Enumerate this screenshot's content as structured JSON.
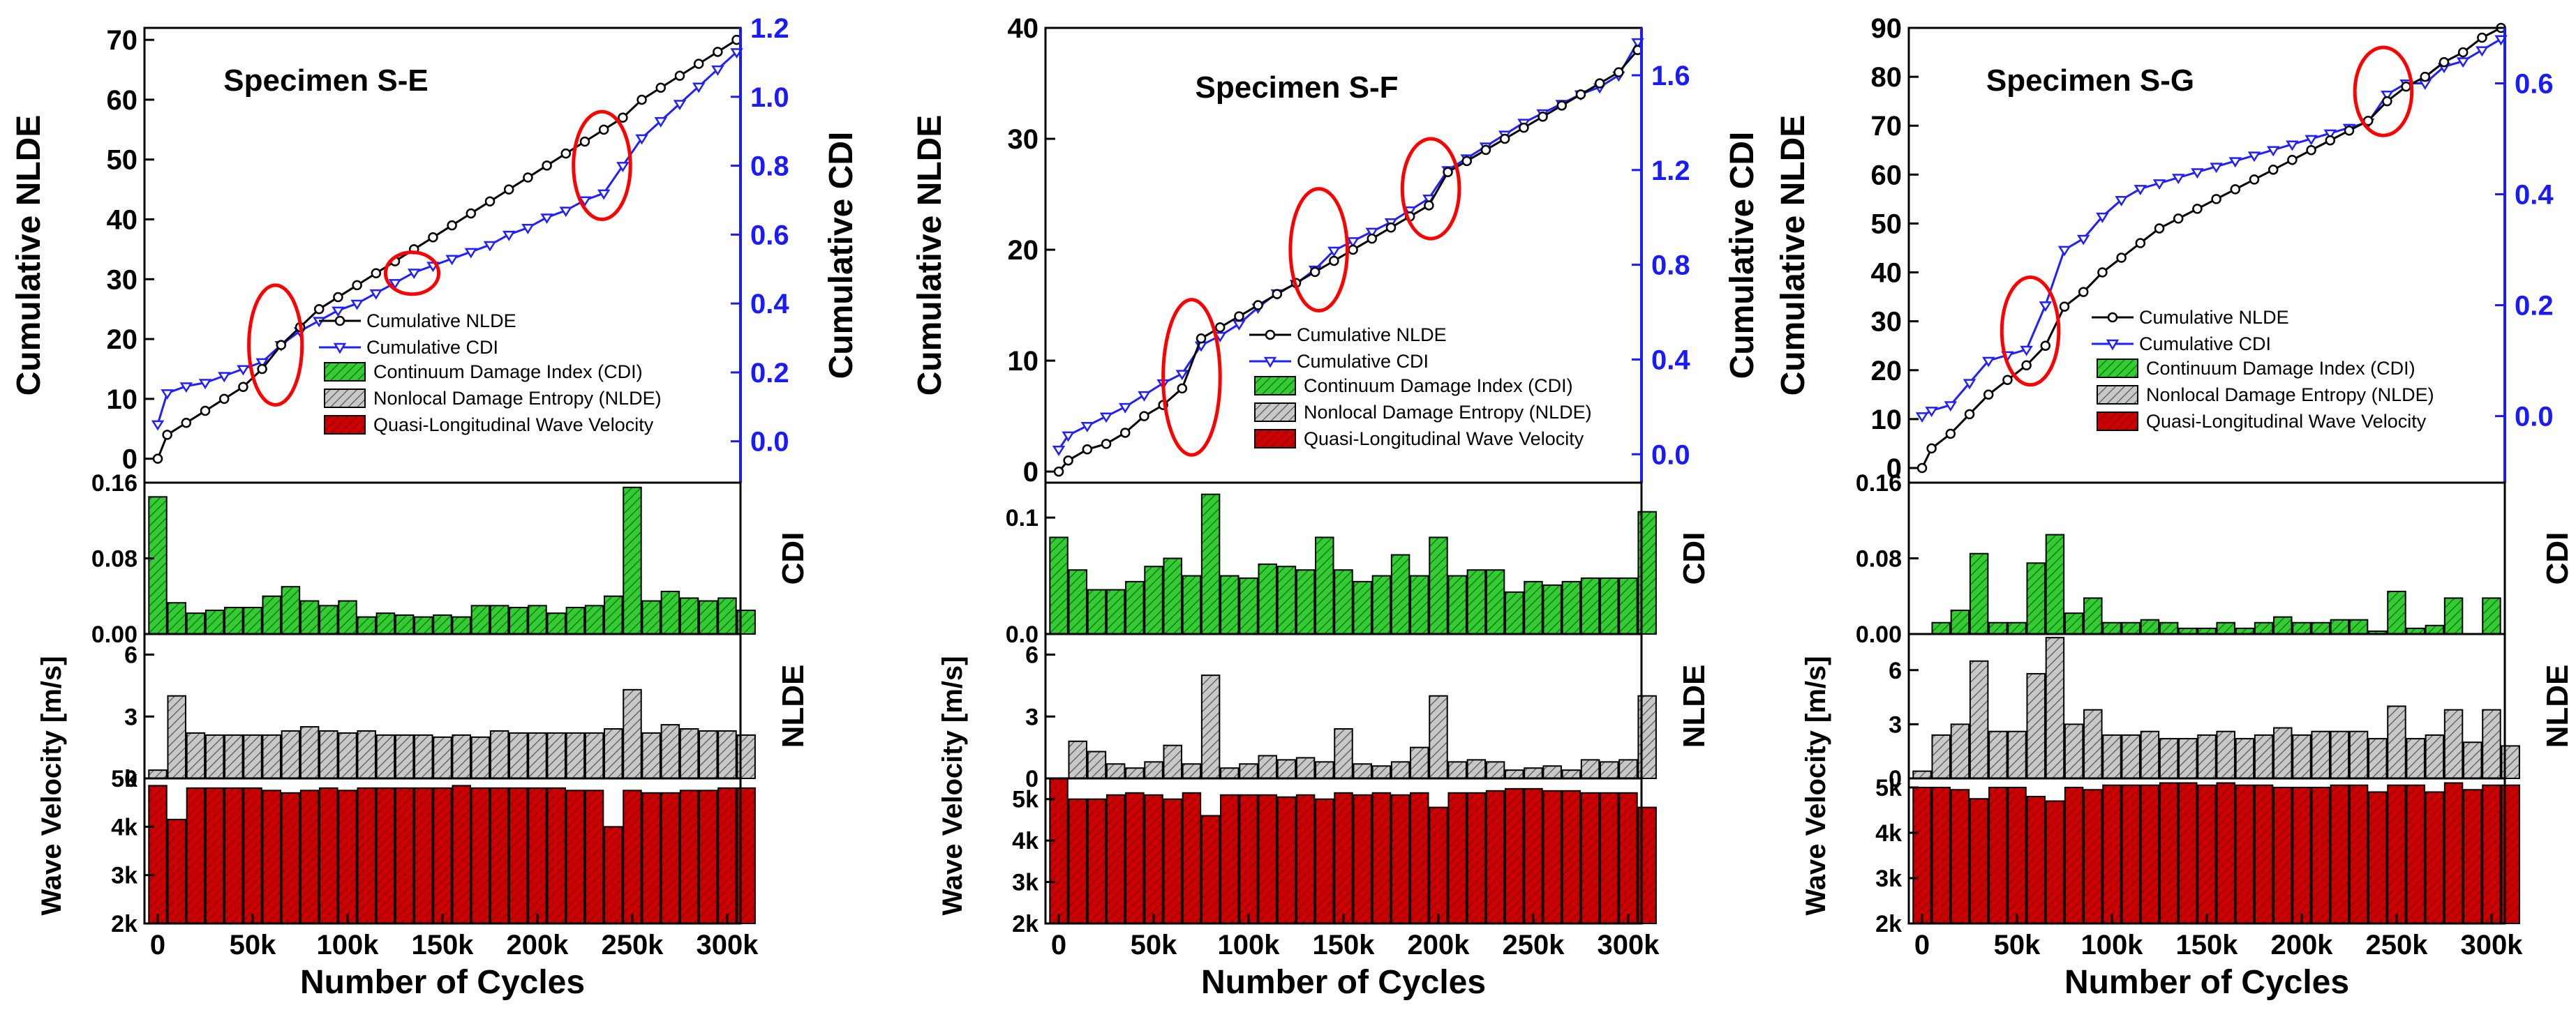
{
  "colors": {
    "cdi_bar": "#33cc33",
    "nlde_bar": "#bfbfbf",
    "wave_bar": "#cc0000",
    "cdi_line": "#1f1fff",
    "nlde_line": "#000000",
    "circle": "#ff0000",
    "right_axis": "#1a1aff"
  },
  "common": {
    "x_axis_label": "Number of Cycles",
    "x_ticks": [
      "0",
      "50k",
      "100k",
      "150k",
      "200k",
      "250k",
      "300k"
    ],
    "cum_left_label": "Cumulative NLDE",
    "cum_right_label": "Cumulative CDI",
    "cdi_label": "CDI",
    "nlde_label": "NLDE",
    "wave_label": "Wave Velocity [m/s]",
    "wave_ticks": [
      "2k",
      "3k",
      "4k",
      "5k"
    ],
    "legend": {
      "cum_nlde": "Cumulative NLDE",
      "cum_cdi": "Cumulative CDI",
      "cdi": "Continuum Damage Index (CDI)",
      "nlde": "Nonlocal Damage Entropy (NLDE)",
      "wave": "Quasi-Longitudinal Wave Velocity"
    }
  },
  "chart_data": [
    {
      "type": "bar",
      "title": "Specimen S-E",
      "x_cycles": [
        0,
        10000,
        20000,
        30000,
        40000,
        50000,
        60000,
        70000,
        80000,
        90000,
        100000,
        110000,
        120000,
        130000,
        140000,
        150000,
        160000,
        170000,
        180000,
        190000,
        200000,
        210000,
        220000,
        230000,
        240000,
        250000,
        260000,
        270000,
        280000,
        290000,
        300000
      ],
      "xlim": [
        0,
        305000
      ],
      "cumulative": {
        "ylim_left": [
          -4,
          72
        ],
        "ylim_right": [
          -0.12,
          1.2
        ],
        "left_ticks": [
          0,
          10,
          20,
          30,
          40,
          50,
          60,
          70
        ],
        "right_ticks": [
          "0.0",
          "0.2",
          "0.4",
          "0.6",
          "0.8",
          "1.0",
          "1.2"
        ],
        "right_tick_values": [
          0,
          0.2,
          0.4,
          0.6,
          0.8,
          1.0,
          1.2
        ],
        "cum_nlde": [
          0,
          4,
          6,
          8,
          10,
          12,
          15,
          19,
          22,
          25,
          27,
          29,
          31,
          33,
          35,
          37,
          39,
          41,
          43,
          45,
          47,
          49,
          51,
          53,
          55,
          57,
          60,
          62,
          64,
          66,
          68,
          70
        ],
        "cum_cdi": [
          0.05,
          0.14,
          0.16,
          0.17,
          0.19,
          0.21,
          0.23,
          0.28,
          0.32,
          0.35,
          0.38,
          0.4,
          0.43,
          0.46,
          0.49,
          0.51,
          0.53,
          0.55,
          0.57,
          0.6,
          0.62,
          0.65,
          0.67,
          0.7,
          0.72,
          0.8,
          0.88,
          0.93,
          0.98,
          1.03,
          1.08,
          1.13
        ],
        "cum_x": [
          0,
          5000,
          15000,
          25000,
          35000,
          45000,
          55000,
          65000,
          75000,
          85000,
          95000,
          105000,
          115000,
          125000,
          135000,
          145000,
          155000,
          165000,
          175000,
          185000,
          195000,
          205000,
          215000,
          225000,
          235000,
          245000,
          255000,
          265000,
          275000,
          285000,
          295000,
          305000
        ],
        "circles": [
          {
            "cx": 62000,
            "cy": 19,
            "rx": 14000,
            "ry": 10
          },
          {
            "cx": 134000,
            "cy": 31,
            "rx": 14000,
            "ry": 3.5
          },
          {
            "cx": 234000,
            "cy": 49,
            "rx": 15000,
            "ry": 9
          }
        ]
      },
      "cdi": {
        "ylim": [
          0,
          0.16
        ],
        "ticks": [
          "0.00",
          "0.08",
          "0.16"
        ],
        "tick_values": [
          0,
          0.08,
          0.16
        ],
        "values": [
          0.145,
          0.033,
          0.022,
          0.025,
          0.028,
          0.028,
          0.04,
          0.05,
          0.035,
          0.03,
          0.035,
          0.018,
          0.022,
          0.02,
          0.018,
          0.02,
          0.018,
          0.03,
          0.03,
          0.028,
          0.03,
          0.022,
          0.028,
          0.03,
          0.04,
          0.155,
          0.035,
          0.045,
          0.038,
          0.035,
          0.038,
          0.025
        ]
      },
      "nlde": {
        "ylim": [
          0,
          7
        ],
        "ticks": [
          "0",
          "3",
          "6"
        ],
        "tick_values": [
          0,
          3,
          6
        ],
        "values": [
          0.4,
          4.0,
          2.2,
          2.1,
          2.1,
          2.1,
          2.1,
          2.3,
          2.5,
          2.3,
          2.2,
          2.3,
          2.1,
          2.1,
          2.1,
          2.0,
          2.1,
          2.0,
          2.3,
          2.2,
          2.2,
          2.2,
          2.2,
          2.2,
          2.4,
          4.3,
          2.2,
          2.6,
          2.4,
          2.3,
          2.3,
          2.1
        ]
      },
      "wave": {
        "ylim": [
          2000,
          5000
        ],
        "tick_values": [
          2000,
          3000,
          4000,
          5000
        ],
        "values": [
          4850,
          4150,
          4800,
          4800,
          4800,
          4800,
          4750,
          4700,
          4750,
          4800,
          4750,
          4800,
          4800,
          4800,
          4800,
          4800,
          4850,
          4800,
          4800,
          4800,
          4800,
          4800,
          4750,
          4750,
          4000,
          4750,
          4700,
          4700,
          4750,
          4750,
          4800,
          4800
        ]
      }
    },
    {
      "type": "bar",
      "title": "Specimen S-F",
      "xlim": [
        0,
        305000
      ],
      "cumulative": {
        "ylim_left": [
          -1,
          40
        ],
        "ylim_right": [
          -0.12,
          1.8
        ],
        "left_ticks": [
          0,
          10,
          20,
          30,
          40
        ],
        "right_ticks": [
          "0.0",
          "0.4",
          "0.8",
          "1.2",
          "1.6"
        ],
        "right_tick_values": [
          0,
          0.4,
          0.8,
          1.2,
          1.6
        ],
        "cum_nlde": [
          0,
          1,
          2,
          2.5,
          3.5,
          5,
          6,
          7.5,
          12,
          13,
          14,
          15,
          16,
          17,
          18,
          19,
          20,
          21,
          22,
          23,
          24,
          27,
          28,
          29,
          30,
          31,
          32,
          33,
          34,
          35,
          36,
          38
        ],
        "cum_cdi": [
          0.02,
          0.08,
          0.12,
          0.16,
          0.2,
          0.25,
          0.3,
          0.34,
          0.46,
          0.5,
          0.55,
          0.62,
          0.68,
          0.72,
          0.78,
          0.86,
          0.9,
          0.94,
          0.98,
          1.03,
          1.08,
          1.2,
          1.25,
          1.3,
          1.35,
          1.4,
          1.44,
          1.48,
          1.52,
          1.55,
          1.6,
          1.74
        ],
        "cum_x": [
          0,
          5000,
          15000,
          25000,
          35000,
          45000,
          55000,
          65000,
          75000,
          85000,
          95000,
          105000,
          115000,
          125000,
          135000,
          145000,
          155000,
          165000,
          175000,
          185000,
          195000,
          205000,
          215000,
          225000,
          235000,
          245000,
          255000,
          265000,
          275000,
          285000,
          295000,
          305000
        ],
        "circles": [
          {
            "cx": 70000,
            "cy": 8.5,
            "rx": 15000,
            "ry": 7
          },
          {
            "cx": 137000,
            "cy": 20,
            "rx": 15000,
            "ry": 5.5
          },
          {
            "cx": 196000,
            "cy": 25.5,
            "rx": 15000,
            "ry": 4.5
          }
        ]
      },
      "cdi": {
        "ylim": [
          0,
          0.13
        ],
        "ticks": [
          "0.0",
          "0.1"
        ],
        "tick_values": [
          0,
          0.1
        ],
        "values": [
          0.083,
          0.055,
          0.038,
          0.038,
          0.045,
          0.058,
          0.065,
          0.05,
          0.12,
          0.05,
          0.048,
          0.06,
          0.058,
          0.055,
          0.083,
          0.055,
          0.045,
          0.05,
          0.068,
          0.05,
          0.083,
          0.05,
          0.055,
          0.055,
          0.036,
          0.045,
          0.042,
          0.045,
          0.048,
          0.048,
          0.048,
          0.105
        ]
      },
      "nlde": {
        "ylim": [
          0,
          7
        ],
        "ticks": [
          "0",
          "3",
          "6"
        ],
        "tick_values": [
          0,
          3,
          6
        ],
        "values": [
          0,
          1.8,
          1.3,
          0.7,
          0.5,
          0.8,
          1.6,
          0.7,
          5.0,
          0.5,
          0.7,
          1.1,
          0.9,
          1.0,
          0.8,
          2.4,
          0.7,
          0.6,
          0.8,
          1.5,
          4.0,
          0.8,
          0.9,
          0.8,
          0.4,
          0.5,
          0.6,
          0.4,
          0.9,
          0.8,
          0.9,
          4.0
        ]
      },
      "wave": {
        "ylim": [
          2000,
          5500
        ],
        "tick_values": [
          2000,
          3000,
          4000,
          5000
        ],
        "values": [
          5500,
          5000,
          5000,
          5100,
          5150,
          5100,
          5000,
          5150,
          4600,
          5100,
          5100,
          5100,
          5050,
          5100,
          5000,
          5150,
          5100,
          5150,
          5100,
          5150,
          4800,
          5150,
          5150,
          5200,
          5250,
          5250,
          5200,
          5200,
          5150,
          5150,
          5150,
          4800
        ]
      }
    },
    {
      "type": "bar",
      "title": "Specimen S-G",
      "xlim": [
        0,
        305000
      ],
      "cumulative": {
        "ylim_left": [
          -3,
          90
        ],
        "ylim_right": [
          -0.12,
          0.7
        ],
        "left_ticks": [
          0,
          10,
          20,
          30,
          40,
          50,
          60,
          70,
          80,
          90
        ],
        "right_ticks": [
          "0.0",
          "0.2",
          "0.4",
          "0.6"
        ],
        "right_tick_values": [
          0,
          0.2,
          0.4,
          0.6
        ],
        "cum_nlde": [
          0,
          4,
          7,
          11,
          15,
          18,
          21,
          25,
          33,
          36,
          40,
          43,
          46,
          49,
          51,
          53,
          55,
          57,
          59,
          61,
          63,
          65,
          67,
          69,
          71,
          75,
          78,
          80,
          83,
          85,
          88,
          90
        ],
        "cum_cdi": [
          0.0,
          0.01,
          0.02,
          0.06,
          0.1,
          0.11,
          0.12,
          0.2,
          0.3,
          0.32,
          0.36,
          0.39,
          0.41,
          0.42,
          0.43,
          0.44,
          0.45,
          0.46,
          0.47,
          0.48,
          0.49,
          0.5,
          0.51,
          0.52,
          0.53,
          0.58,
          0.6,
          0.6,
          0.63,
          0.64,
          0.66,
          0.68
        ],
        "cum_x": [
          0,
          5000,
          15000,
          25000,
          35000,
          45000,
          55000,
          65000,
          75000,
          85000,
          95000,
          105000,
          115000,
          125000,
          135000,
          145000,
          155000,
          165000,
          175000,
          185000,
          195000,
          205000,
          215000,
          225000,
          235000,
          245000,
          255000,
          265000,
          275000,
          285000,
          295000,
          305000
        ],
        "circles": [
          {
            "cx": 57000,
            "cy": 28,
            "rx": 15000,
            "ry": 11
          },
          {
            "cx": 243000,
            "cy": 77,
            "rx": 15000,
            "ry": 9
          }
        ]
      },
      "cdi": {
        "ylim": [
          0,
          0.16
        ],
        "ticks": [
          "0.00",
          "0.08",
          "0.16"
        ],
        "tick_values": [
          0,
          0.08,
          0.16
        ],
        "values": [
          0.0,
          0.012,
          0.025,
          0.085,
          0.012,
          0.012,
          0.075,
          0.105,
          0.022,
          0.038,
          0.012,
          0.012,
          0.015,
          0.012,
          0.006,
          0.006,
          0.012,
          0.006,
          0.012,
          0.018,
          0.012,
          0.012,
          0.015,
          0.015,
          0.003,
          0.045,
          0.006,
          0.009,
          0.038,
          0.0,
          0.038,
          0.0
        ]
      },
      "nlde": {
        "ylim": [
          0,
          8
        ],
        "ticks": [
          "0",
          "3",
          "6"
        ],
        "tick_values": [
          0,
          3,
          6
        ],
        "values": [
          0.4,
          2.4,
          3.0,
          6.5,
          2.6,
          2.6,
          5.8,
          7.8,
          3.0,
          3.8,
          2.4,
          2.4,
          2.6,
          2.2,
          2.2,
          2.4,
          2.6,
          2.2,
          2.4,
          2.8,
          2.4,
          2.6,
          2.6,
          2.6,
          2.2,
          4.0,
          2.2,
          2.4,
          3.8,
          2.0,
          3.8,
          1.8
        ]
      },
      "wave": {
        "ylim": [
          2000,
          5200
        ],
        "tick_values": [
          2000,
          3000,
          4000,
          5000
        ],
        "values": [
          5000,
          5000,
          4950,
          4750,
          5000,
          5000,
          4800,
          4700,
          5000,
          4950,
          5050,
          5050,
          5050,
          5100,
          5100,
          5050,
          5100,
          5050,
          5050,
          5000,
          5000,
          5000,
          5050,
          5050,
          4900,
          5050,
          5050,
          4900,
          5100,
          4950,
          5050,
          5050
        ]
      }
    }
  ]
}
